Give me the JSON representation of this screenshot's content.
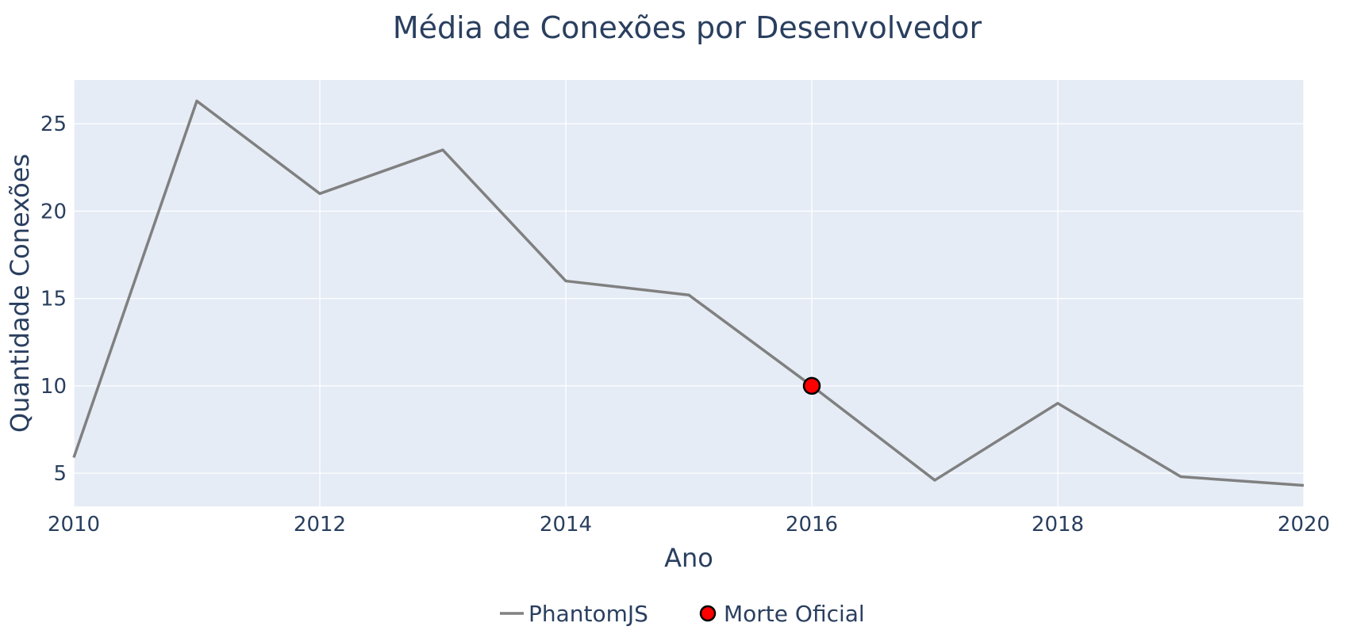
{
  "chart_data": {
    "type": "line",
    "title": "Média de Conexões por Desenvolvedor",
    "xlabel": "Ano",
    "ylabel": "Quantidade Conexões",
    "xlim": [
      2010,
      2020
    ],
    "ylim": [
      3.1,
      27.5
    ],
    "x_ticks": [
      2010,
      2012,
      2014,
      2016,
      2018,
      2020
    ],
    "y_ticks": [
      5,
      10,
      15,
      20,
      25
    ],
    "grid": true,
    "legend_position": "bottom-center",
    "colors": {
      "plot_bg": "#e5ecf6",
      "line": "#808080",
      "marker": "#ff0000",
      "marker_outline": "#000000",
      "text": "#2a3f5f"
    },
    "series": [
      {
        "name": "PhantomJS",
        "mode": "lines",
        "x": [
          2010,
          2011,
          2012,
          2013,
          2014,
          2015,
          2016,
          2017,
          2018,
          2019,
          2020
        ],
        "y": [
          5.9,
          26.3,
          21.0,
          23.5,
          16.0,
          15.2,
          10.0,
          4.6,
          9.0,
          4.8,
          4.3
        ]
      },
      {
        "name": "Morte Oficial",
        "mode": "markers",
        "x": [
          2016
        ],
        "y": [
          10.0
        ]
      }
    ]
  }
}
